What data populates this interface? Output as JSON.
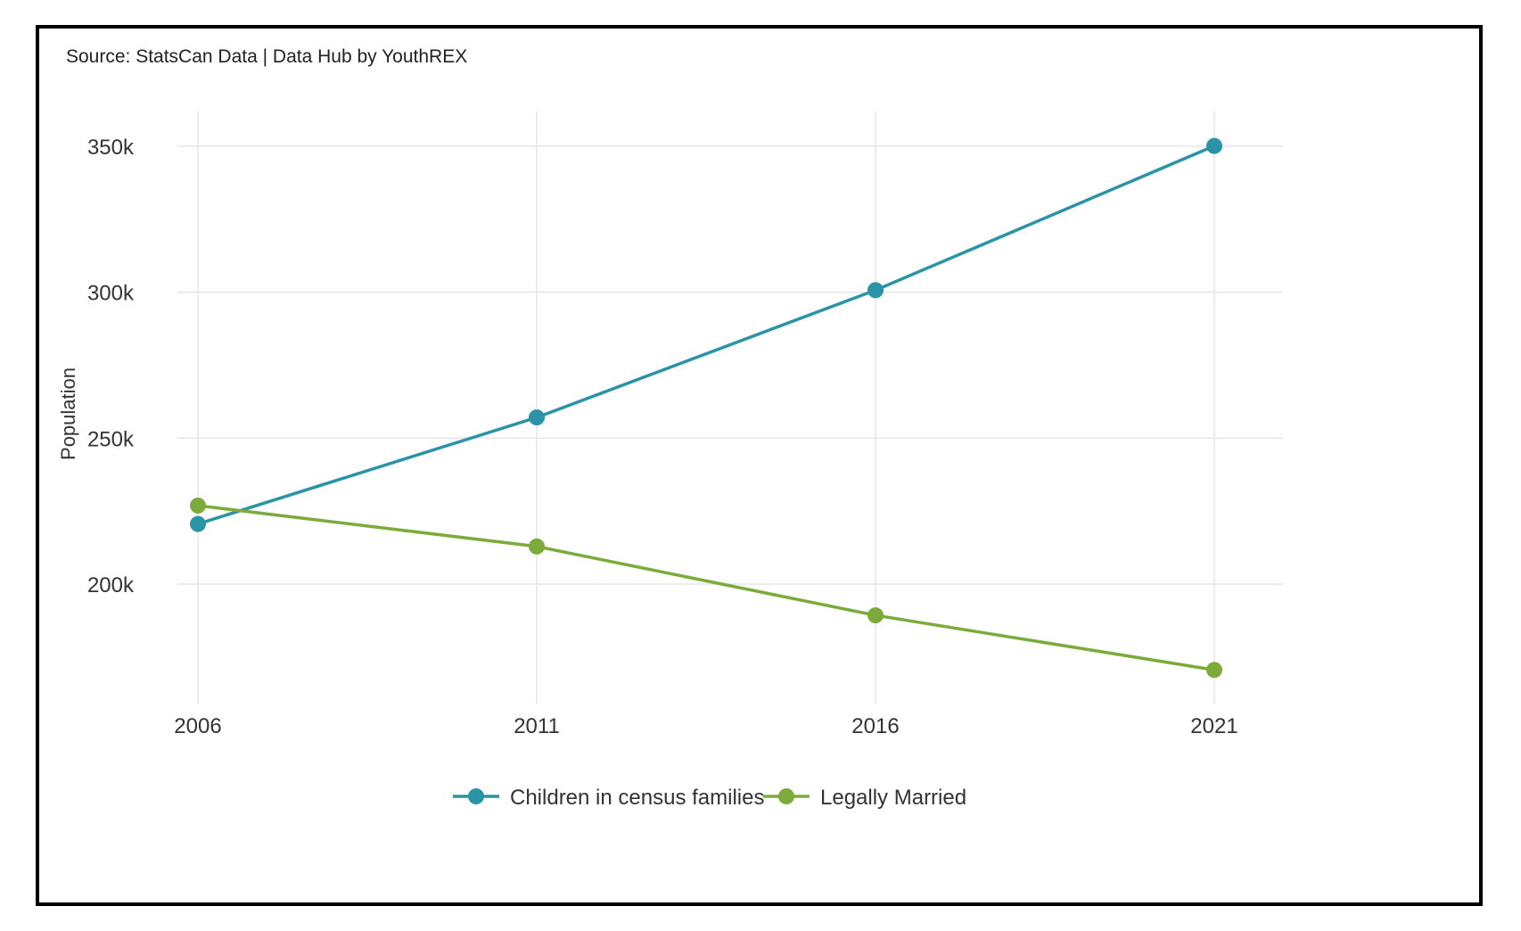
{
  "source": "Source: StatsCan Data | Data Hub by YouthREX",
  "chart_data": {
    "type": "line",
    "title": "",
    "xlabel": "",
    "ylabel": "Population",
    "categories": [
      "2006",
      "2011",
      "2016",
      "2021"
    ],
    "x_ticks": [
      "2006",
      "2011",
      "2016",
      "2021"
    ],
    "y_ticks": [
      200000,
      250000,
      300000,
      350000
    ],
    "y_tick_labels": [
      "200k",
      "250k",
      "300k",
      "350k"
    ],
    "ylim": [
      160000,
      362000
    ],
    "grid": true,
    "legend_position": "bottom",
    "series": [
      {
        "name": "Children in census families",
        "color": "#2a94a6",
        "values": [
          220600,
          257100,
          300700,
          350100
        ]
      },
      {
        "name": "Legally Married",
        "color": "#7cab3c",
        "values": [
          226900,
          212900,
          189300,
          170600
        ]
      }
    ]
  }
}
